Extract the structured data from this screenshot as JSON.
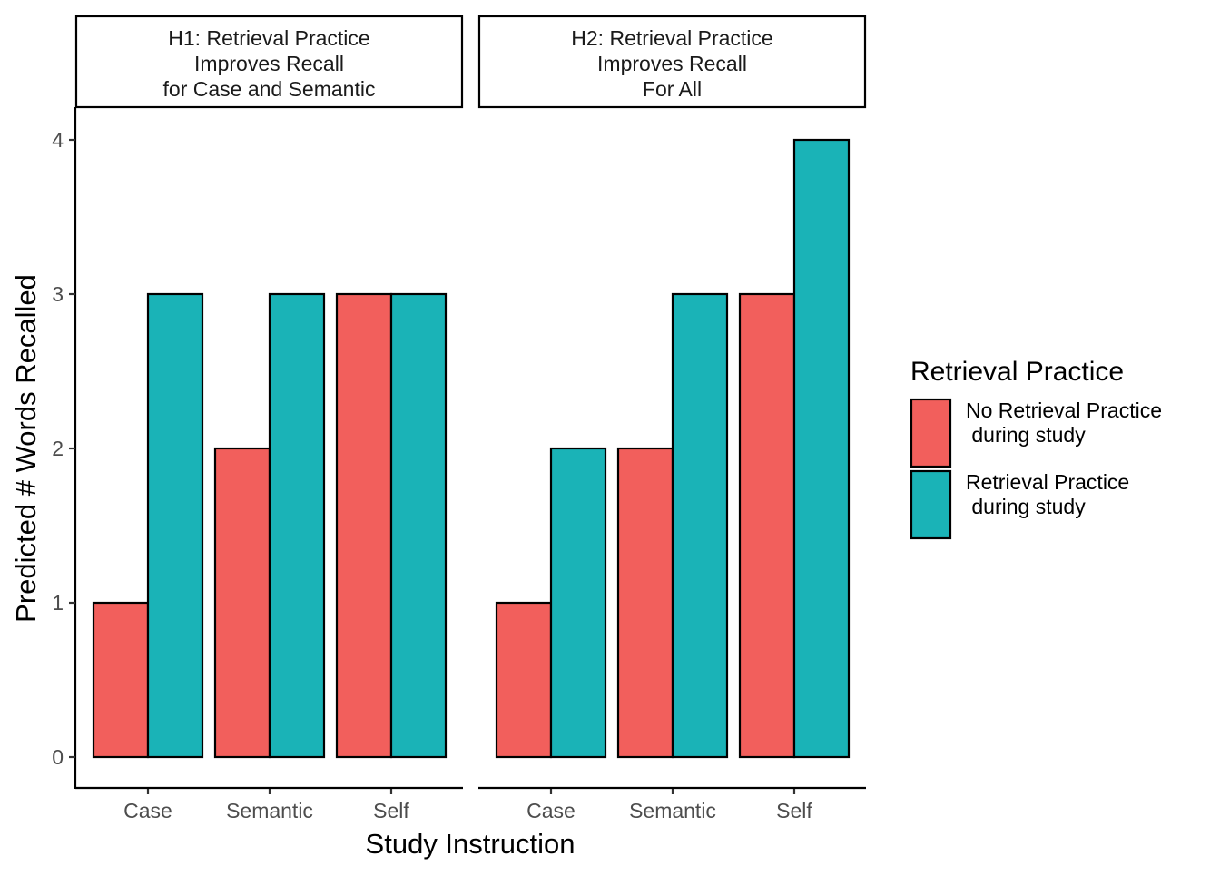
{
  "chart_data": {
    "type": "bar",
    "xlabel": "Study Instruction",
    "ylabel": "Predicted # Words Recalled",
    "ylim": [
      0,
      4
    ],
    "yticks": [
      "0",
      "1",
      "2",
      "3",
      "4"
    ],
    "categories": [
      "Case",
      "Semantic",
      "Self"
    ],
    "grid": false,
    "legend": {
      "title": "Retrieval Practice",
      "placement": "right",
      "entries": [
        {
          "line1": "No Retrieval Practice",
          "line2": " during study",
          "color": "#F25F5C"
        },
        {
          "line1": "Retrieval Practice",
          "line2": " during study",
          "color": "#1AB3B7"
        }
      ]
    },
    "panels": [
      {
        "title_lines": [
          "H1: Retrieval Practice",
          "Improves Recall",
          "for Case and Semantic"
        ],
        "series": [
          {
            "name": "No Retrieval Practice during study",
            "values": [
              1,
              2,
              3
            ]
          },
          {
            "name": "Retrieval Practice during study",
            "values": [
              3,
              3,
              3
            ]
          }
        ]
      },
      {
        "title_lines": [
          "H2: Retrieval Practice",
          "Improves Recall",
          "For All"
        ],
        "series": [
          {
            "name": "No Retrieval Practice during study",
            "values": [
              1,
              2,
              3
            ]
          },
          {
            "name": "Retrieval Practice during study",
            "values": [
              2,
              3,
              4
            ]
          }
        ]
      }
    ]
  }
}
